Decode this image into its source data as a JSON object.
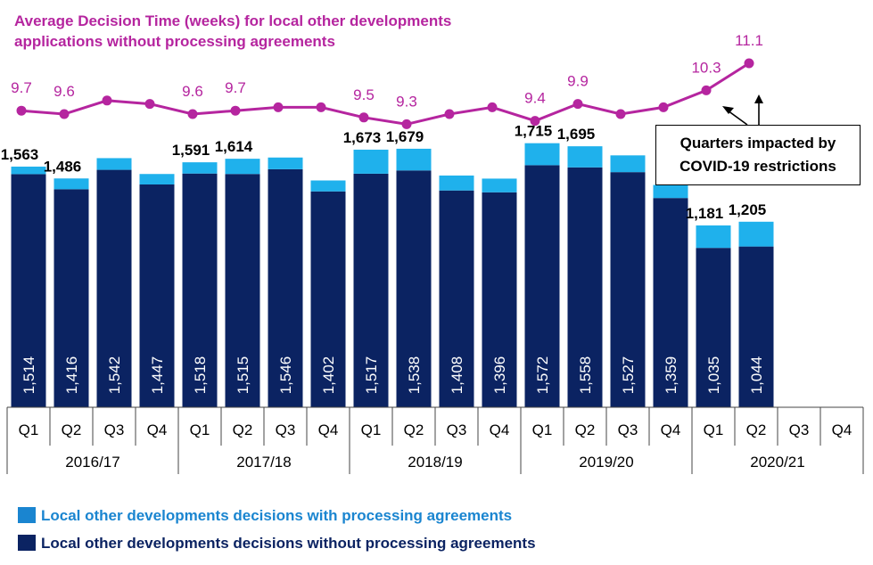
{
  "chart_data": {
    "type": "bar",
    "title_lines": [
      "Average Decision Time (weeks) for local other developments",
      "applications without processing agreements"
    ],
    "years": [
      "2016/17",
      "2017/18",
      "2018/19",
      "2019/20",
      "2020/21"
    ],
    "categories": [
      "Q1",
      "Q2",
      "Q3",
      "Q4",
      "Q1",
      "Q2",
      "Q3",
      "Q4",
      "Q1",
      "Q2",
      "Q3",
      "Q4",
      "Q1",
      "Q2",
      "Q3",
      "Q4",
      "Q1",
      "Q2",
      "Q3",
      "Q4"
    ],
    "series": [
      {
        "name": "Local other developments decisions without processing agreements",
        "color": "#0B2362",
        "values": [
          1514,
          1416,
          1542,
          1447,
          1518,
          1515,
          1546,
          1402,
          1517,
          1538,
          1408,
          1396,
          1572,
          1558,
          1527,
          1359,
          1035,
          1044,
          null,
          null
        ],
        "labels": [
          "1,514",
          "1,416",
          "1,542",
          "1,447",
          "1,518",
          "1,515",
          "1,546",
          "1,402",
          "1,517",
          "1,538",
          "1,408",
          "1,396",
          "1,572",
          "1,558",
          "1,527",
          "1,359",
          "1,035",
          "1,044",
          "",
          ""
        ]
      },
      {
        "name": "Local other developments decisions with processing agreements",
        "color": "#1FB1EC",
        "values": [
          49,
          70,
          76,
          68,
          73,
          99,
          76,
          71,
          156,
          141,
          97,
          89,
          143,
          137,
          109,
          85,
          146,
          161,
          null,
          null
        ]
      }
    ],
    "totals": [
      1563,
      1486,
      1618,
      1515,
      1591,
      1614,
      1622,
      1473,
      1673,
      1679,
      1505,
      1485,
      1715,
      1695,
      1636,
      1444,
      1181,
      1205,
      null,
      null
    ],
    "total_labels": [
      "1,563",
      "1,486",
      "",
      "",
      "1,591",
      "1,614",
      "",
      "",
      "1,673",
      "1,679",
      "",
      "",
      "1,715",
      "1,695",
      "",
      "",
      "1,181",
      "1,205",
      "",
      ""
    ],
    "decision_time": {
      "name": "Average Decision Time (weeks)",
      "color": "#B5259F",
      "values": [
        9.7,
        9.6,
        10.0,
        9.9,
        9.6,
        9.7,
        9.8,
        9.8,
        9.5,
        9.3,
        9.6,
        9.8,
        9.4,
        9.9,
        9.6,
        9.8,
        10.3,
        11.1,
        null,
        null
      ],
      "labels": [
        "9.7",
        "9.6",
        "",
        "",
        "9.6",
        "9.7",
        "",
        "",
        "9.5",
        "9.3",
        "",
        "",
        "9.4",
        "9.9",
        "",
        "",
        "10.3",
        "11.1",
        "",
        ""
      ]
    },
    "ylim": [
      0,
      1800
    ],
    "annotation": [
      "Quarters impacted by",
      "COVID-19 restrictions"
    ]
  },
  "legend": {
    "with_label": "Local other developments decisions with processing agreements",
    "without_label": "Local other developments decisions without processing agreements",
    "with_color": "#1A85D0",
    "without_color": "#0B2362"
  }
}
